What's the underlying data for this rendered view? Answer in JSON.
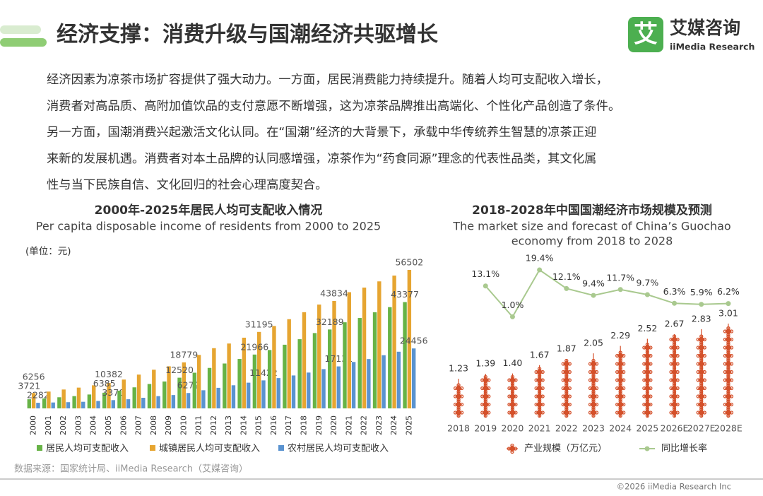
{
  "header": {
    "title": "经济支撑：消费升级与国潮经济共驱增长",
    "logo_mark": "艾",
    "logo_cn": "艾媒咨询",
    "logo_en": "iiMedia Research"
  },
  "paragraph": [
    "经济因素为凉茶市场扩容提供了强大动力。一方面，居民消费能力持续提升。随着人均可支配收入增长，",
    "消费者对高品质、高附加值饮品的支付意愿不断增强，这为凉茶品牌推出高端化、个性化产品创造了条件。",
    "另一方面，国潮消费兴起激活文化认同。在“国潮”经济的大背景下，承载中华传统养生智慧的凉茶正迎",
    "来新的发展机遇。消费者对本土品牌的认同感增强，凉茶作为“药食同源”理念的代表性品类，其文化属",
    "性与当下民族自信、文化回归的社会心理高度契合。"
  ],
  "chart_data": [
    {
      "type": "bar",
      "title": "2000年-2025年居民人均可支配收入情况",
      "subtitle": "Per capita disposable income of residents from 2000 to 2025",
      "unit_label": "(单位：元)",
      "categories": [
        "2000",
        "2001",
        "2002",
        "2003",
        "2004",
        "2005",
        "2006",
        "2007",
        "2008",
        "2009",
        "2010",
        "2011",
        "2012",
        "2013",
        "2014",
        "2015",
        "2016",
        "2017",
        "2018",
        "2019",
        "2020",
        "2021",
        "2022",
        "2023",
        "2024",
        "2025"
      ],
      "series": [
        {
          "name": "居民人均可支配收入",
          "color": "#67b346",
          "values": [
            3721,
            4070,
            4532,
            5007,
            5661,
            6385,
            7229,
            8584,
            9957,
            10977,
            12520,
            14551,
            16510,
            18311,
            20167,
            21966,
            23821,
            25974,
            28228,
            30733,
            32189,
            35128,
            36883,
            39218,
            41314,
            43377
          ],
          "value_labels": [
            "3721",
            null,
            null,
            null,
            null,
            "6385",
            null,
            null,
            null,
            null,
            "12520",
            null,
            null,
            null,
            null,
            "21966",
            null,
            null,
            null,
            null,
            "32189",
            null,
            null,
            null,
            null,
            "43377"
          ]
        },
        {
          "name": "城镇居民人均可支配收入",
          "color": "#e6a531",
          "values": [
            6256,
            6860,
            7703,
            8472,
            9422,
            10382,
            11759,
            13786,
            15781,
            17175,
            18779,
            21810,
            24565,
            26467,
            28844,
            31195,
            33616,
            36396,
            39251,
            42359,
            43834,
            47412,
            49283,
            51821,
            54188,
            56502
          ],
          "value_labels": [
            "6256",
            null,
            null,
            null,
            null,
            "10382",
            null,
            null,
            null,
            null,
            "18779",
            null,
            null,
            null,
            null,
            "31195",
            null,
            null,
            null,
            null,
            "43834",
            null,
            null,
            null,
            null,
            "56502"
          ]
        },
        {
          "name": "农村居民人均可支配收入",
          "color": "#5a93d0",
          "values": [
            2282,
            2407,
            2529,
            2690,
            3027,
            3370,
            3731,
            4327,
            4999,
            5435,
            6272,
            7394,
            8389,
            9430,
            10489,
            11422,
            12363,
            13432,
            14617,
            16021,
            17131,
            18931,
            20133,
            21691,
            23119,
            24456
          ],
          "value_labels": [
            "2282",
            null,
            null,
            null,
            null,
            "3370",
            null,
            null,
            null,
            null,
            "6272",
            null,
            null,
            null,
            null,
            "11422",
            null,
            null,
            null,
            null,
            "17131",
            null,
            null,
            null,
            null,
            "24456"
          ]
        }
      ]
    },
    {
      "type": "combo",
      "title": "2018-2028年中国国潮经济市场规模及预测",
      "subtitle": [
        "The market size and forecast of China’s Guochao",
        "economy from 2018 to 2028"
      ],
      "categories": [
        "2018",
        "2019",
        "2020",
        "2021",
        "2022",
        "2023",
        "2024",
        "2025",
        "2026E",
        "2027E",
        "2028E"
      ],
      "series": [
        {
          "name": "产业规模（万亿元）",
          "color": "#d4502a",
          "values": [
            1.23,
            1.39,
            1.4,
            1.67,
            1.87,
            2.05,
            2.29,
            2.52,
            2.67,
            2.83,
            3.01
          ],
          "value_labels": [
            "1.23",
            "1.39",
            "1.40",
            "1.67",
            "1.87",
            "2.05",
            "2.29",
            "2.52",
            "2.67",
            "2.83",
            "3.01"
          ]
        },
        {
          "name": "同比增长率",
          "color": "#a9c98f",
          "axis": "y2",
          "values": [
            null,
            13.1,
            1.0,
            19.4,
            12.1,
            9.4,
            11.7,
            9.7,
            6.3,
            5.9,
            6.2
          ],
          "value_labels": [
            null,
            "13.1%",
            "1.0%",
            "19.4%",
            "12.1%",
            "9.4%",
            "11.7%",
            "9.7%",
            "6.3%",
            "5.9%",
            "6.2%"
          ]
        }
      ]
    }
  ],
  "source": "数据来源：国家统计局、iiMedia Research（艾媒咨询）",
  "footer": "©2026  iiMedia Research  Inc"
}
